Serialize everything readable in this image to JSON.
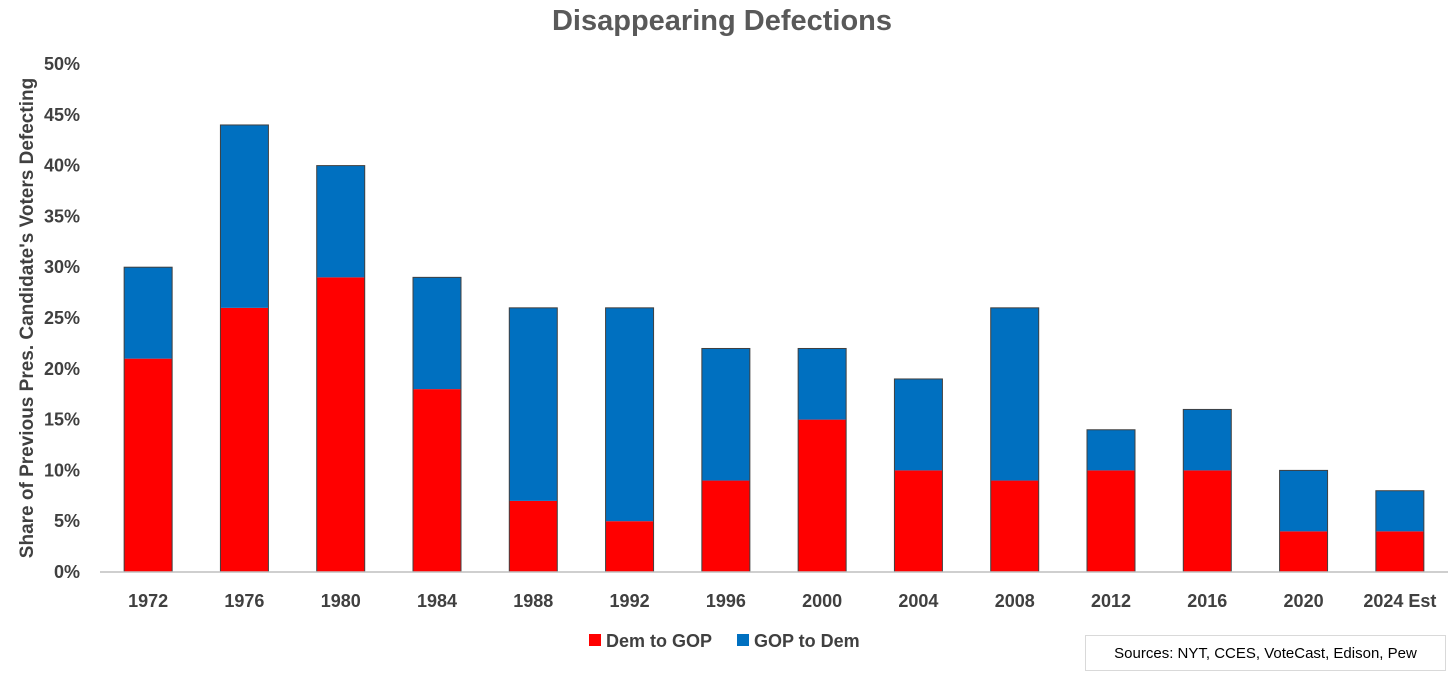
{
  "chart_data": {
    "type": "bar",
    "stacked": true,
    "title": "Disappearing Defections",
    "ylabel": "Share of Previous Pres. Candidate's Voters Defecting",
    "xlabel": "",
    "ylim": [
      0,
      50
    ],
    "yticks": [
      "0%",
      "5%",
      "10%",
      "15%",
      "20%",
      "25%",
      "30%",
      "35%",
      "40%",
      "45%",
      "50%"
    ],
    "grid": false,
    "legend_position": "bottom",
    "categories": [
      "1972",
      "1976",
      "1980",
      "1984",
      "1988",
      "1992",
      "1996",
      "2000",
      "2004",
      "2008",
      "2012",
      "2016",
      "2020",
      "2024 Est"
    ],
    "series": [
      {
        "name": "Dem to GOP",
        "color": "#ff0000",
        "values": [
          21,
          26,
          29,
          18,
          7,
          5,
          9,
          15,
          10,
          9,
          10,
          10,
          4,
          4
        ]
      },
      {
        "name": "GOP to Dem",
        "color": "#0070c0",
        "values": [
          9,
          18,
          11,
          11,
          19,
          21,
          13,
          7,
          9,
          17,
          4,
          6,
          6,
          4
        ]
      }
    ],
    "annotation": "Sources: NYT, CCES, VoteCast, Edison, Pew"
  }
}
